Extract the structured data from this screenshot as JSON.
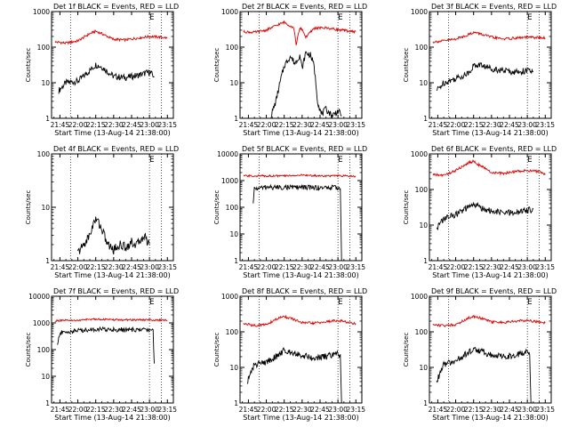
{
  "window": {
    "background": "#ffffff"
  },
  "colors": {
    "events": "#000000",
    "lld": "#e00000",
    "frame": "#000000"
  },
  "chart_data": [
    {
      "type": "line",
      "title": "Det 1f BLACK = Events, RED = LLD",
      "xlabel": "Start Time (13-Aug-14 21:38:00)",
      "ylabel": "Counts/sec",
      "x_ticks": [
        "21:45",
        "22:00",
        "22:15",
        "22:30",
        "22:45",
        "23:00",
        "23:15"
      ],
      "y_ticks": [
        "1",
        "10",
        "100",
        "1000"
      ],
      "y_scale": "log",
      "ylim": [
        1,
        1000
      ],
      "E_marker": "E",
      "vlines": [
        "21:54",
        "23:00",
        "23:10"
      ],
      "series": [
        {
          "name": "BLACK = Events",
          "color": "#000000",
          "x": [
            "21:44",
            "21:50",
            "22:00",
            "22:10",
            "22:15",
            "22:20",
            "22:30",
            "22:40",
            "22:50",
            "23:00",
            "23:04"
          ],
          "y": [
            6,
            10,
            11,
            22,
            32,
            28,
            15,
            14,
            16,
            20,
            15
          ]
        },
        {
          "name": "RED = LLD",
          "color": "#e00000",
          "x": [
            "21:41",
            "21:50",
            "22:00",
            "22:10",
            "22:15",
            "22:20",
            "22:30",
            "22:40",
            "22:50",
            "23:00",
            "23:10",
            "23:15"
          ],
          "y": [
            140,
            130,
            150,
            240,
            280,
            240,
            165,
            160,
            180,
            200,
            190,
            180
          ]
        }
      ]
    },
    {
      "type": "line",
      "title": "Det 2f BLACK = Events, RED = LLD",
      "xlabel": "Start Time (13-Aug-14 21:38:00)",
      "ylabel": "Counts/sec",
      "x_ticks": [
        "21:45",
        "22:00",
        "22:15",
        "22:30",
        "22:45",
        "23:00",
        "23:15"
      ],
      "y_ticks": [
        "1",
        "10",
        "100",
        "1000"
      ],
      "y_scale": "log",
      "ylim": [
        1,
        1000
      ],
      "E_marker": "E",
      "vlines": [
        "21:54",
        "23:00",
        "23:10"
      ],
      "series": [
        {
          "name": "BLACK = Events",
          "color": "#000000",
          "x": [
            "22:04",
            "22:08",
            "22:12",
            "22:15",
            "22:20",
            "22:24",
            "22:28",
            "22:30",
            "22:33",
            "22:37",
            "22:40",
            "22:43",
            "22:46",
            "22:50",
            "22:55",
            "23:00",
            "23:03"
          ],
          "y": [
            1.2,
            3,
            12,
            30,
            55,
            35,
            60,
            25,
            70,
            60,
            30,
            3,
            1.3,
            1.8,
            1.2,
            1.6,
            1.2
          ]
        },
        {
          "name": "RED = LLD",
          "color": "#e00000",
          "x": [
            "21:41",
            "21:50",
            "22:00",
            "22:10",
            "22:15",
            "22:20",
            "22:23",
            "22:25",
            "22:28",
            "22:30",
            "22:33",
            "22:40",
            "22:50",
            "23:00",
            "23:10",
            "23:15"
          ],
          "y": [
            270,
            260,
            300,
            430,
            500,
            400,
            350,
            120,
            330,
            320,
            190,
            340,
            350,
            310,
            280,
            270
          ]
        }
      ]
    },
    {
      "type": "line",
      "title": "Det 3f BLACK = Events, RED = LLD",
      "xlabel": "Start Time (13-Aug-14 21:38:00)",
      "ylabel": "Counts/sec",
      "x_ticks": [
        "21:45",
        "22:00",
        "22:15",
        "22:30",
        "22:45",
        "23:00",
        "23:15"
      ],
      "y_ticks": [
        "1",
        "10",
        "100",
        "1000"
      ],
      "y_scale": "log",
      "ylim": [
        1,
        1000
      ],
      "E_marker": "E",
      "vlines": [
        "21:54",
        "23:00",
        "23:10"
      ],
      "series": [
        {
          "name": "BLACK = Events",
          "color": "#000000",
          "x": [
            "21:44",
            "21:50",
            "22:00",
            "22:10",
            "22:15",
            "22:20",
            "22:30",
            "22:40",
            "22:50",
            "23:00",
            "23:05"
          ],
          "y": [
            6,
            10,
            13,
            18,
            30,
            32,
            25,
            22,
            20,
            22,
            20
          ]
        },
        {
          "name": "RED = LLD",
          "color": "#e00000",
          "x": [
            "21:41",
            "21:50",
            "22:00",
            "22:10",
            "22:15",
            "22:20",
            "22:30",
            "22:40",
            "22:50",
            "23:00",
            "23:10",
            "23:15"
          ],
          "y": [
            140,
            150,
            170,
            220,
            260,
            240,
            190,
            170,
            180,
            190,
            185,
            180
          ]
        }
      ]
    },
    {
      "type": "line",
      "title": "Det 4f BLACK = Events, RED = LLD",
      "xlabel": "Start Time (13-Aug-14 21:38:00)",
      "ylabel": "Counts/sec",
      "x_ticks": [
        "21:45",
        "22:00",
        "22:15",
        "22:30",
        "22:45",
        "23:00",
        "23:15"
      ],
      "y_ticks": [
        "1",
        "10",
        "100"
      ],
      "y_scale": "log",
      "ylim": [
        1,
        100
      ],
      "E_marker": "E",
      "vlines": [
        "21:54",
        "23:00",
        "23:10"
      ],
      "series": [
        {
          "name": "BLACK = Events",
          "color": "#000000",
          "x": [
            "22:00",
            "22:05",
            "22:10",
            "22:13",
            "22:16",
            "22:20",
            "22:25",
            "22:30",
            "22:35",
            "22:40",
            "22:45",
            "22:50",
            "22:55",
            "23:00"
          ],
          "y": [
            1.4,
            2,
            3,
            5,
            6,
            4,
            2,
            1.6,
            2,
            1.8,
            2.2,
            2,
            3,
            2
          ]
        }
      ]
    },
    {
      "type": "line",
      "title": "Det 5f BLACK = Events, RED = LLD",
      "xlabel": "Start Time (13-Aug-14 21:38:00)",
      "ylabel": "Counts/sec",
      "x_ticks": [
        "21:45",
        "22:00",
        "22:15",
        "22:30",
        "22:45",
        "23:00",
        "23:15"
      ],
      "y_ticks": [
        "1",
        "10",
        "100",
        "1000",
        "10000"
      ],
      "y_scale": "log",
      "ylim": [
        1,
        10000
      ],
      "E_marker": "E",
      "vlines": [
        "21:54",
        "23:00",
        "23:10"
      ],
      "series": [
        {
          "name": "BLACK = Events",
          "color": "#000000",
          "x": [
            "21:49",
            "21:50",
            "22:00",
            "22:15",
            "22:30",
            "22:45",
            "23:00",
            "23:02",
            "23:03"
          ],
          "y": [
            130,
            500,
            560,
            560,
            560,
            540,
            550,
            520,
            1
          ]
        },
        {
          "name": "RED = LLD",
          "color": "#e00000",
          "x": [
            "21:41",
            "22:00",
            "22:15",
            "22:30",
            "22:45",
            "23:00",
            "23:15"
          ],
          "y": [
            1500,
            1500,
            1500,
            1600,
            1500,
            1500,
            1450
          ]
        }
      ]
    },
    {
      "type": "line",
      "title": "Det 6f BLACK = Events, RED = LLD",
      "xlabel": "Start Time (13-Aug-14 21:38:00)",
      "ylabel": "Counts/sec",
      "x_ticks": [
        "21:45",
        "22:00",
        "22:15",
        "22:30",
        "22:45",
        "23:00",
        "23:15"
      ],
      "y_ticks": [
        "1",
        "10",
        "100",
        "1000"
      ],
      "y_scale": "log",
      "ylim": [
        1,
        1000
      ],
      "E_marker": "E",
      "vlines": [
        "21:54",
        "23:00",
        "23:10"
      ],
      "series": [
        {
          "name": "BLACK = Events",
          "color": "#000000",
          "x": [
            "21:44",
            "21:50",
            "22:00",
            "22:10",
            "22:15",
            "22:20",
            "22:30",
            "22:40",
            "22:50",
            "23:00",
            "23:05"
          ],
          "y": [
            8,
            15,
            20,
            30,
            38,
            32,
            24,
            22,
            22,
            26,
            28
          ]
        },
        {
          "name": "RED = LLD",
          "color": "#e00000",
          "x": [
            "21:41",
            "21:50",
            "22:00",
            "22:10",
            "22:15",
            "22:20",
            "22:30",
            "22:40",
            "22:50",
            "23:00",
            "23:10",
            "23:15"
          ],
          "y": [
            260,
            250,
            340,
            550,
            620,
            480,
            300,
            280,
            320,
            340,
            320,
            260
          ]
        }
      ]
    },
    {
      "type": "line",
      "title": "Det 7f BLACK = Events, RED = LLD",
      "xlabel": "Start Time (13-Aug-14 21:38:00)",
      "ylabel": "Counts/sec",
      "x_ticks": [
        "21:45",
        "22:00",
        "22:15",
        "22:30",
        "22:45",
        "23:00",
        "23:15"
      ],
      "y_ticks": [
        "1",
        "10",
        "100",
        "1000",
        "10000"
      ],
      "y_scale": "log",
      "ylim": [
        1,
        10000
      ],
      "E_marker": "E",
      "vlines": [
        "21:54",
        "23:00",
        "23:10"
      ],
      "series": [
        {
          "name": "BLACK = Events",
          "color": "#000000",
          "x": [
            "21:43",
            "21:45",
            "22:00",
            "22:15",
            "22:30",
            "22:45",
            "23:00",
            "23:03",
            "23:04"
          ],
          "y": [
            150,
            420,
            520,
            580,
            560,
            540,
            560,
            500,
            30
          ]
        },
        {
          "name": "RED = LLD",
          "color": "#e00000",
          "x": [
            "21:41",
            "22:00",
            "22:15",
            "22:30",
            "22:45",
            "23:00",
            "23:15"
          ],
          "y": [
            1200,
            1250,
            1400,
            1300,
            1300,
            1300,
            1250
          ]
        }
      ]
    },
    {
      "type": "line",
      "title": "Det 8f BLACK = Events, RED = LLD",
      "xlabel": "Start Time (13-Aug-14 21:38:00)",
      "ylabel": "Counts/sec",
      "x_ticks": [
        "21:45",
        "22:00",
        "22:15",
        "22:30",
        "22:45",
        "23:00",
        "23:15"
      ],
      "y_ticks": [
        "1",
        "10",
        "100",
        "1000"
      ],
      "y_scale": "log",
      "ylim": [
        1,
        1000
      ],
      "E_marker": "E",
      "vlines": [
        "21:54",
        "23:00",
        "23:10"
      ],
      "series": [
        {
          "name": "BLACK = Events",
          "color": "#000000",
          "x": [
            "21:44",
            "21:50",
            "22:00",
            "22:10",
            "22:15",
            "22:20",
            "22:30",
            "22:40",
            "22:50",
            "23:00",
            "23:02",
            "23:03"
          ],
          "y": [
            4,
            12,
            14,
            22,
            30,
            28,
            22,
            18,
            20,
            24,
            20,
            1
          ]
        },
        {
          "name": "RED = LLD",
          "color": "#e00000",
          "x": [
            "21:41",
            "21:50",
            "22:00",
            "22:10",
            "22:15",
            "22:20",
            "22:30",
            "22:40",
            "22:50",
            "23:00",
            "23:10",
            "23:15"
          ],
          "y": [
            170,
            150,
            160,
            240,
            270,
            240,
            180,
            175,
            190,
            210,
            180,
            170
          ]
        }
      ]
    },
    {
      "type": "line",
      "title": "Det 9f BLACK = Events, RED = LLD",
      "xlabel": "Start Time (13-Aug-14 21:38:00)",
      "ylabel": "Counts/sec",
      "x_ticks": [
        "21:45",
        "22:00",
        "22:15",
        "22:30",
        "22:45",
        "23:00",
        "23:15"
      ],
      "y_ticks": [
        "1",
        "10",
        "100",
        "1000"
      ],
      "y_scale": "log",
      "ylim": [
        1,
        1000
      ],
      "E_marker": "E",
      "vlines": [
        "21:54",
        "23:00",
        "23:10"
      ],
      "series": [
        {
          "name": "BLACK = Events",
          "color": "#000000",
          "x": [
            "21:44",
            "21:50",
            "22:00",
            "22:10",
            "22:15",
            "22:20",
            "22:30",
            "22:40",
            "22:50",
            "23:00",
            "23:02",
            "23:03"
          ],
          "y": [
            4,
            12,
            15,
            25,
            32,
            30,
            22,
            20,
            22,
            28,
            24,
            1
          ]
        },
        {
          "name": "RED = LLD",
          "color": "#e00000",
          "x": [
            "21:41",
            "21:50",
            "22:00",
            "22:10",
            "22:15",
            "22:20",
            "22:30",
            "22:40",
            "22:50",
            "23:00",
            "23:10",
            "23:15"
          ],
          "y": [
            160,
            150,
            160,
            240,
            270,
            250,
            190,
            180,
            200,
            210,
            190,
            180
          ]
        }
      ]
    }
  ]
}
